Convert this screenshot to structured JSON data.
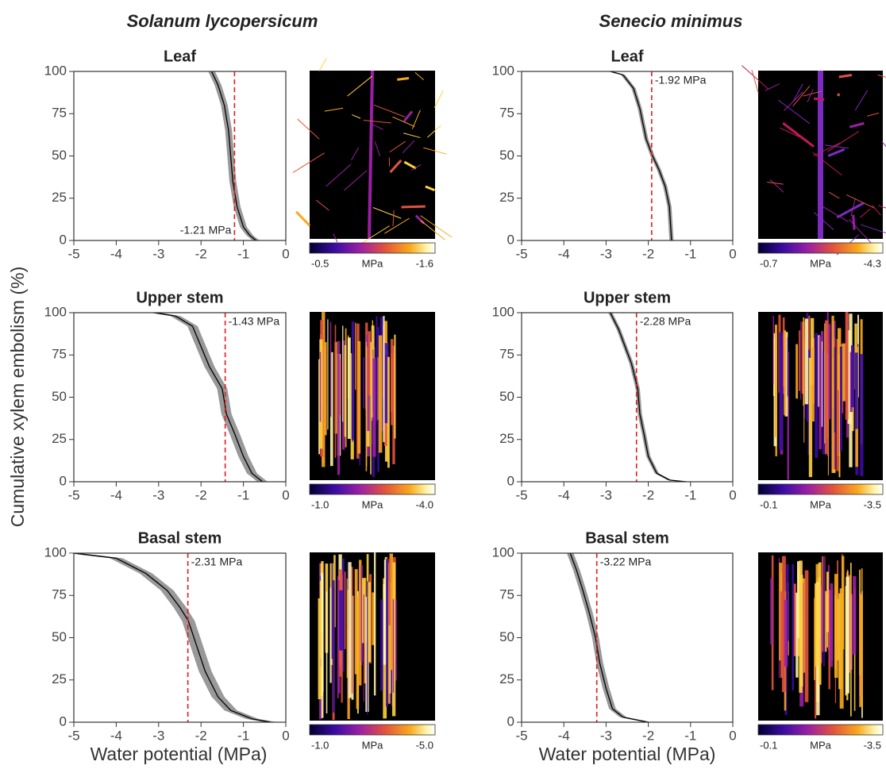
{
  "species": [
    "Solanum lycopersicum",
    "Senecio minimus"
  ],
  "y_label": "Cumulative xylem embolism (%)",
  "x_label": "Water potential (MPa)",
  "chart_data": [
    {
      "type": "line",
      "title": "Leaf",
      "x": [
        -1.75,
        -1.6,
        -1.45,
        -1.35,
        -1.3,
        -1.25,
        -1.15,
        -1.0,
        -0.85,
        -0.7
      ],
      "values": [
        100,
        92,
        80,
        65,
        50,
        35,
        20,
        8,
        3,
        0
      ],
      "ci_halfwidth": 0.08,
      "threshold": {
        "value": -1.21,
        "label": "-1.21 MPa"
      },
      "xlim": [
        -5,
        0
      ],
      "ylim": [
        0,
        100
      ],
      "xticks": [
        -5,
        -4,
        -3,
        -2,
        -1,
        0
      ],
      "yticks": [
        0,
        25,
        50,
        75,
        100
      ],
      "line_color": "#000000",
      "band_color": "#999999",
      "threshold_color": "#e41a1c",
      "colorbar": {
        "ticks": [
          -0.5,
          -1.6
        ],
        "label": "MPa"
      }
    },
    {
      "type": "line",
      "title": "Leaf",
      "x": [
        -2.9,
        -2.6,
        -2.35,
        -2.2,
        -2.05,
        -1.9,
        -1.75,
        -1.6,
        -1.5,
        -1.45
      ],
      "values": [
        100,
        98,
        90,
        78,
        60,
        50,
        42,
        32,
        20,
        0
      ],
      "ci_halfwidth": 0.05,
      "threshold": {
        "value": -1.92,
        "label": "-1.92 MPa"
      },
      "xlim": [
        -5,
        0
      ],
      "ylim": [
        0,
        100
      ],
      "xticks": [
        -5,
        -4,
        -3,
        -2,
        -1,
        0
      ],
      "yticks": [
        0,
        25,
        50,
        75,
        100
      ],
      "line_color": "#000000",
      "band_color": "#999999",
      "threshold_color": "#e41a1c",
      "colorbar": {
        "ticks": [
          -0.7,
          -4.3
        ],
        "label": "MPa"
      }
    },
    {
      "type": "line",
      "title": "Upper stem",
      "x": [
        -3.1,
        -2.6,
        -2.2,
        -2.0,
        -1.8,
        -1.5,
        -1.4,
        -1.2,
        -1.0,
        -0.8,
        -0.55
      ],
      "values": [
        100,
        98,
        92,
        80,
        68,
        55,
        40,
        28,
        15,
        5,
        0
      ],
      "ci_halfwidth": 0.12,
      "threshold": {
        "value": -1.43,
        "label": "-1.43 MPa"
      },
      "xlim": [
        -5,
        0
      ],
      "ylim": [
        0,
        100
      ],
      "xticks": [
        -5,
        -4,
        -3,
        -2,
        -1,
        0
      ],
      "yticks": [
        0,
        25,
        50,
        75,
        100
      ],
      "line_color": "#000000",
      "band_color": "#999999",
      "threshold_color": "#e41a1c",
      "colorbar": {
        "ticks": [
          {
            "value": -1,
            "label": "-1.0"
          },
          {
            "value": -4,
            "label": "-4.0"
          }
        ],
        "label": "MPa"
      }
    },
    {
      "type": "line",
      "title": "Upper stem",
      "x": [
        -2.9,
        -2.7,
        -2.55,
        -2.4,
        -2.25,
        -2.2,
        -2.1,
        -2.0,
        -1.8,
        -1.5,
        -1.1
      ],
      "values": [
        100,
        90,
        80,
        70,
        55,
        40,
        28,
        15,
        5,
        1,
        0
      ],
      "ci_halfwidth": 0.05,
      "threshold": {
        "value": -2.28,
        "label": "-2.28 MPa"
      },
      "xlim": [
        -5,
        0
      ],
      "ylim": [
        0,
        100
      ],
      "xticks": [
        -5,
        -4,
        -3,
        -2,
        -1,
        0
      ],
      "yticks": [
        0,
        25,
        50,
        75,
        100
      ],
      "line_color": "#000000",
      "band_color": "#999999",
      "threshold_color": "#e41a1c",
      "colorbar": {
        "ticks": [
          -0.1,
          -3.5
        ],
        "label": "MPa"
      }
    },
    {
      "type": "line",
      "title": "Basal stem",
      "x": [
        -5,
        -4,
        -3.3,
        -2.8,
        -2.5,
        -2.3,
        -2.1,
        -1.9,
        -1.6,
        -1.3,
        -0.8,
        -0.35
      ],
      "values": [
        100,
        97,
        88,
        78,
        68,
        60,
        45,
        30,
        15,
        7,
        2,
        0
      ],
      "ci_halfwidth": 0.15,
      "threshold": {
        "value": -2.31,
        "label": "-2.31 MPa"
      },
      "xlim": [
        -5,
        0
      ],
      "ylim": [
        0,
        100
      ],
      "xticks": [
        -5,
        -4,
        -3,
        -2,
        -1,
        0
      ],
      "yticks": [
        0,
        25,
        50,
        75,
        100
      ],
      "line_color": "#000000",
      "band_color": "#999999",
      "threshold_color": "#e41a1c",
      "colorbar": {
        "ticks": [
          {
            "value": -1,
            "label": "-1.0"
          },
          {
            "value": -5,
            "label": "-5.0"
          }
        ],
        "label": "MPa"
      }
    },
    {
      "type": "line",
      "title": "Basal stem",
      "x": [
        -3.85,
        -3.7,
        -3.55,
        -3.4,
        -3.25,
        -3.15,
        -3.0,
        -2.85,
        -2.6,
        -2.0
      ],
      "values": [
        100,
        90,
        78,
        65,
        50,
        35,
        20,
        8,
        3,
        0
      ],
      "ci_halfwidth": 0.08,
      "threshold": {
        "value": -3.22,
        "label": "-3.22 MPa"
      },
      "xlim": [
        -5,
        0
      ],
      "ylim": [
        0,
        100
      ],
      "xticks": [
        -5,
        -4,
        -3,
        -2,
        -1,
        0
      ],
      "yticks": [
        0,
        25,
        50,
        75,
        100
      ],
      "line_color": "#000000",
      "band_color": "#999999",
      "threshold_color": "#e41a1c",
      "colorbar": {
        "ticks": [
          -0.1,
          -3.5
        ],
        "label": "MPa"
      }
    }
  ]
}
